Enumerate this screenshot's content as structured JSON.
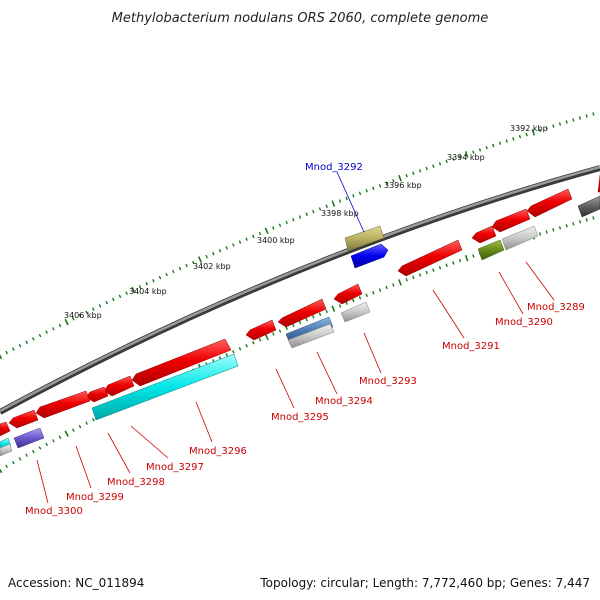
{
  "title": "Methylobacterium nodulans ORS 2060, complete genome",
  "accession_text": "Accession: NC_011894",
  "topology_text": "Topology: circular; Length: 7,772,460 bp; Genes: 7,447",
  "kbp_labels": [
    "3392 kbp",
    "3394 kbp",
    "3396 kbp",
    "3398 kbp",
    "3400 kbp",
    "3402 kbp",
    "3404 kbp",
    "3406 kbp"
  ],
  "gene_labels": [
    {
      "name": "Mnod_3292",
      "color": "#0000cc"
    },
    {
      "name": "Mnod_3289",
      "color": "#cc0000"
    },
    {
      "name": "Mnod_3290",
      "color": "#cc0000"
    },
    {
      "name": "Mnod_3291",
      "color": "#cc0000"
    },
    {
      "name": "Mnod_3293",
      "color": "#cc0000"
    },
    {
      "name": "Mnod_3294",
      "color": "#cc0000"
    },
    {
      "name": "Mnod_3295",
      "color": "#cc0000"
    },
    {
      "name": "Mnod_3296",
      "color": "#cc0000"
    },
    {
      "name": "Mnod_3297",
      "color": "#cc0000"
    },
    {
      "name": "Mnod_3298",
      "color": "#cc0000"
    },
    {
      "name": "Mnod_3299",
      "color": "#cc0000"
    },
    {
      "name": "Mnod_3300",
      "color": "#cc0000"
    }
  ],
  "colors": {
    "backbone": "#7a7a7a",
    "tick": "#1a7a1a",
    "gene_red": "#ee0000",
    "gene_cyan": "#00e0e0",
    "gene_blue": "#0000ee",
    "gene_olive": "#b8b060",
    "gene_steel": "#4a7ab0",
    "gene_grey": "#c0c0c0",
    "gene_green": "#6a8a1a",
    "gene_purple": "#6a5acd",
    "gene_dark": "#606060"
  }
}
